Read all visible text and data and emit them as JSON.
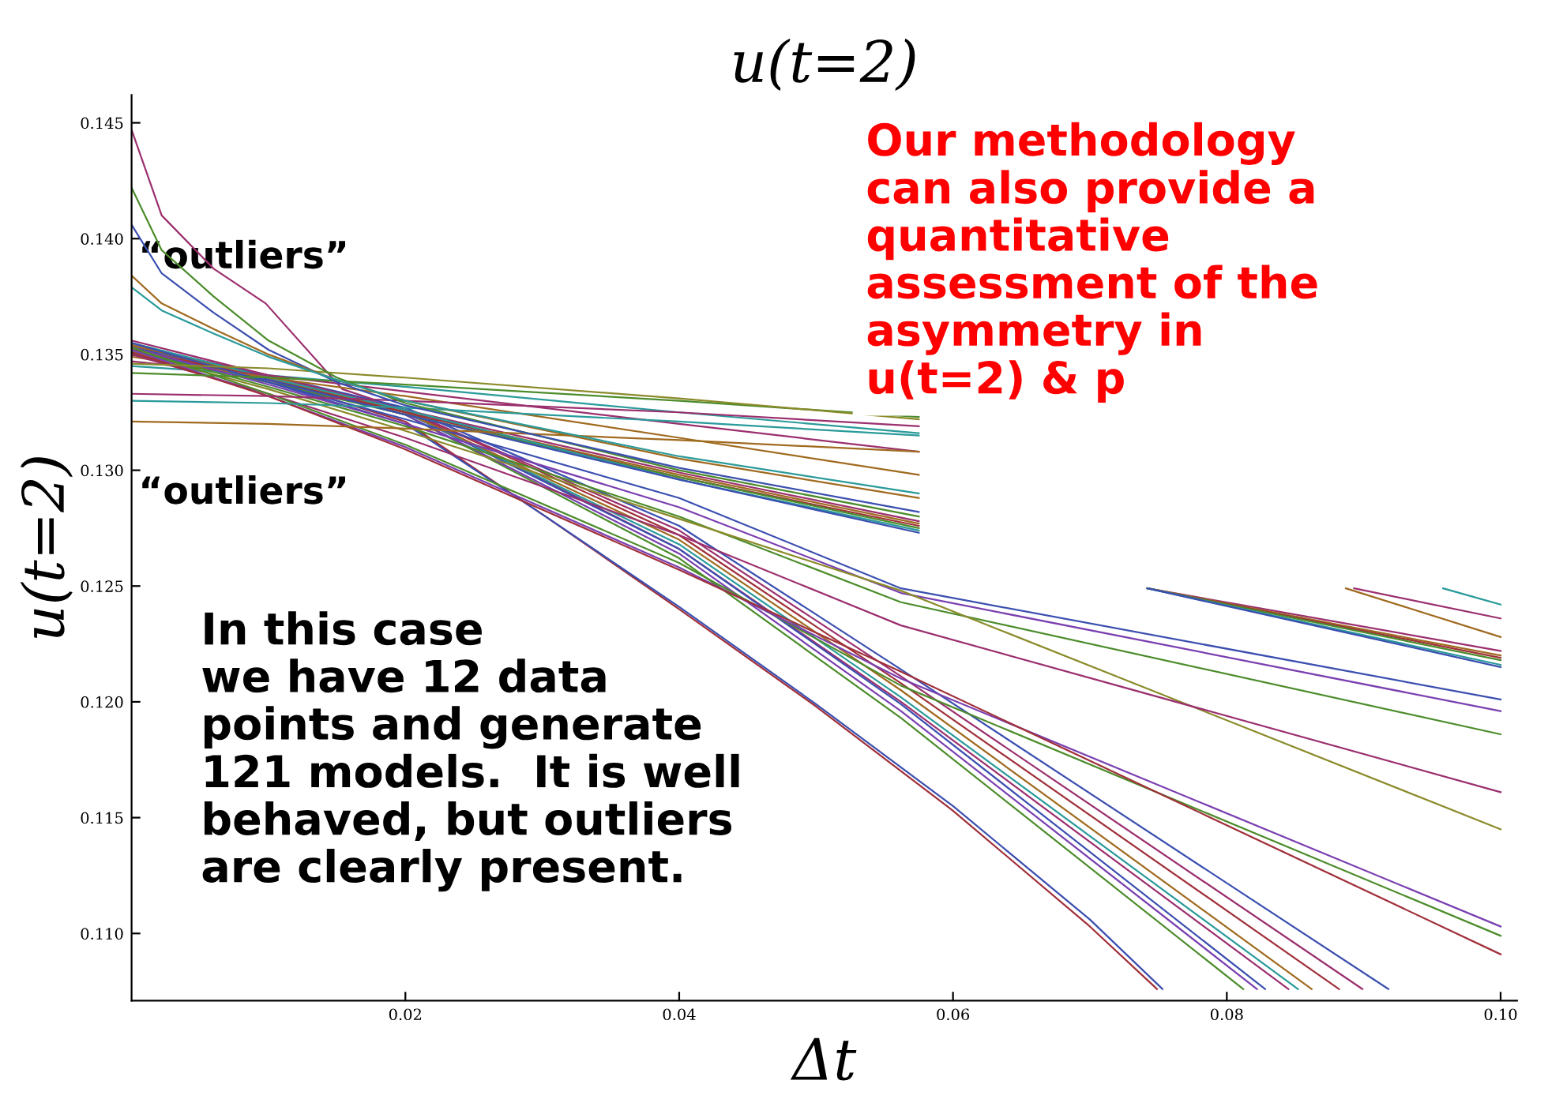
{
  "chart_data": {
    "type": "line",
    "title": "u(t=2)",
    "xlabel": "Δt",
    "ylabel": "u(t=2)",
    "xlim": [
      0,
      0.1012
    ],
    "ylim": [
      0.1071,
      0.1462
    ],
    "xticks": [
      0.02,
      0.04,
      0.06,
      0.08,
      {
        "value": 0.1,
        "label": "0.10"
      }
    ],
    "yticks": [
      {
        "value": 0.11,
        "label": "0.110"
      },
      0.115,
      {
        "value": 0.12,
        "label": "0.120"
      },
      0.125,
      {
        "value": 0.13,
        "label": "0.130"
      },
      0.135,
      {
        "value": 0.14,
        "label": "0.140"
      },
      0.145
    ],
    "grid": false,
    "marker": "none",
    "line_style": "solid",
    "annotations": [
      "“outliers”",
      "“outliers”",
      "Our methodology\ncan also provide a\nquantitative\nassessment of the\nasymmetry in\nu(t=2) & p",
      "In this case\nwe have 12 data\npoints and generate\n121 models.  It is well\nbehaved, but outliers\nare clearly present."
    ],
    "series": [
      {
        "color": "#a0303a",
        "x": [
          0,
          0.01,
          0.02,
          0.03,
          0.04,
          0.05,
          0.06,
          0.07,
          0.0749
        ],
        "values": [
          0.1352,
          0.1339,
          0.1321,
          0.1281,
          0.124,
          0.1198,
          0.1153,
          0.1103,
          0.1076
        ]
      },
      {
        "color": "#3b4fb0",
        "x": [
          0,
          0.01,
          0.02,
          0.03,
          0.04,
          0.05,
          0.06,
          0.07,
          0.0753
        ],
        "values": [
          0.1351,
          0.1338,
          0.132,
          0.1281,
          0.1241,
          0.1199,
          0.1155,
          0.1106,
          0.1076
        ]
      },
      {
        "color": "#9b2f6e",
        "x": [
          0,
          0.0022,
          0.006,
          0.0098,
          0.0154,
          0.02,
          0.04,
          0.0562,
          0.0845
        ],
        "values": [
          0.1447,
          0.141,
          0.1387,
          0.1372,
          0.1335,
          0.1326,
          0.1266,
          0.12,
          0.1076
        ]
      },
      {
        "color": "#4c8c2b",
        "x": [
          0,
          0.01,
          0.02,
          0.04,
          0.0562,
          0.0812
        ],
        "values": [
          0.1353,
          0.134,
          0.1324,
          0.1262,
          0.1193,
          0.1076
        ]
      },
      {
        "color": "#7a3fb0",
        "x": [
          0,
          0.01,
          0.02,
          0.04,
          0.0562,
          0.0822
        ],
        "values": [
          0.1352,
          0.1339,
          0.1324,
          0.1264,
          0.1196,
          0.1076
        ]
      },
      {
        "color": "#3b4fb0",
        "x": [
          0,
          0.01,
          0.02,
          0.04,
          0.0562,
          0.0828
        ],
        "values": [
          0.1354,
          0.134,
          0.1325,
          0.1266,
          0.1199,
          0.1076
        ]
      },
      {
        "color": "#2a9a9a",
        "x": [
          0,
          0.01,
          0.02,
          0.04,
          0.0562,
          0.0852
        ],
        "values": [
          0.1351,
          0.1339,
          0.1325,
          0.1268,
          0.1202,
          0.1076
        ]
      },
      {
        "color": "#a06a1f",
        "x": [
          0,
          0.01,
          0.02,
          0.04,
          0.0562,
          0.0862
        ],
        "values": [
          0.1353,
          0.134,
          0.1325,
          0.127,
          0.1205,
          0.1076
        ]
      },
      {
        "color": "#a0303a",
        "x": [
          0,
          0.01,
          0.02,
          0.04,
          0.0562,
          0.0882
        ],
        "values": [
          0.1352,
          0.134,
          0.1326,
          0.1272,
          0.1208,
          0.1076
        ]
      },
      {
        "color": "#9b2f6e",
        "x": [
          0,
          0.01,
          0.02,
          0.04,
          0.0562,
          0.0899
        ],
        "values": [
          0.1354,
          0.1341,
          0.1326,
          0.1274,
          0.1211,
          0.1076
        ]
      },
      {
        "color": "#3b4fb0",
        "x": [
          0,
          0.01,
          0.02,
          0.04,
          0.0562,
          0.0918
        ],
        "values": [
          0.1353,
          0.1341,
          0.1327,
          0.1276,
          0.1214,
          0.1076
        ]
      },
      {
        "color": "#9b2f6e",
        "x": [
          0,
          0.01,
          0.02,
          0.04,
          0.0575,
          0.065,
          0.0742,
          0.1
        ],
        "values": [
          0.1356,
          0.1341,
          0.1326,
          0.1299,
          0.1278,
          null,
          0.1249,
          0.1222
        ]
      },
      {
        "color": "#a06a1f",
        "x": [
          0,
          0.01,
          0.02,
          0.04,
          0.0575,
          0.065,
          0.0742,
          0.1
        ],
        "values": [
          0.1354,
          0.134,
          0.1325,
          0.1298,
          0.1277,
          null,
          0.1249,
          0.122
        ]
      },
      {
        "color": "#a0303a",
        "x": [
          0,
          0.01,
          0.02,
          0.04,
          0.0575,
          0.065,
          0.0742,
          0.1
        ],
        "values": [
          0.1352,
          0.1339,
          0.1325,
          0.1297,
          0.1276,
          null,
          0.1249,
          0.1219
        ]
      },
      {
        "color": "#4c8c2b",
        "x": [
          0,
          0.01,
          0.02,
          0.04,
          0.0575,
          0.065,
          0.0742,
          0.1
        ],
        "values": [
          0.135,
          0.1338,
          0.1324,
          0.1297,
          0.1275,
          null,
          0.1249,
          0.1218
        ]
      },
      {
        "color": "#2a9a9a",
        "x": [
          0,
          0.01,
          0.02,
          0.04,
          0.0575,
          0.065,
          0.0742,
          0.1
        ],
        "values": [
          0.1355,
          0.134,
          0.1326,
          0.1296,
          0.1274,
          null,
          0.1249,
          0.1216
        ]
      },
      {
        "color": "#3b4fb0",
        "x": [
          0,
          0.01,
          0.02,
          0.04,
          0.0575,
          0.065,
          0.0742,
          0.1
        ],
        "values": [
          0.1351,
          0.1339,
          0.1324,
          0.1296,
          0.1273,
          null,
          0.1249,
          0.1215
        ]
      },
      {
        "color": "#2a9a9a",
        "x": [
          0,
          0.01,
          0.02,
          0.04,
          0.0575,
          0.08,
          0.0958,
          0.1
        ],
        "values": [
          0.1345,
          0.1341,
          0.1336,
          0.1325,
          0.1316,
          null,
          0.1249,
          0.1242
        ]
      },
      {
        "color": "#9b2f6e",
        "x": [
          0,
          0.01,
          0.02,
          0.04,
          0.0575,
          0.075,
          0.0893,
          0.1
        ],
        "values": [
          0.1347,
          0.1341,
          0.1334,
          0.132,
          0.1308,
          null,
          0.1249,
          0.1236
        ]
      },
      {
        "color": "#a06a1f",
        "x": [
          0,
          0.01,
          0.02,
          0.04,
          0.0575,
          0.07,
          0.0887,
          0.1
        ],
        "values": [
          0.1349,
          0.134,
          0.1332,
          0.1314,
          0.1298,
          null,
          0.1249,
          0.1228
        ]
      },
      {
        "color": "#3b4fb0",
        "x": [
          0,
          0.01,
          0.02,
          0.04,
          0.0562,
          0.1
        ],
        "values": [
          0.1355,
          0.1338,
          0.1322,
          0.1288,
          0.1249,
          0.1201
        ]
      },
      {
        "color": "#7a3fb0",
        "x": [
          0,
          0.01,
          0.02,
          0.04,
          0.0562,
          0.1
        ],
        "values": [
          0.1353,
          0.1337,
          0.132,
          0.1284,
          0.1247,
          0.1196
        ]
      },
      {
        "color": "#4c8c2b",
        "x": [
          0,
          0.01,
          0.02,
          0.04,
          0.0562,
          0.1
        ],
        "values": [
          0.1352,
          0.1336,
          0.1319,
          0.128,
          0.1243,
          0.1186
        ]
      },
      {
        "color": "#8a8a2a",
        "x": [
          0,
          0.01,
          0.02,
          0.04,
          0.0562,
          0.1
        ],
        "values": [
          0.1351,
          0.1335,
          0.1317,
          0.1279,
          0.1248,
          0.1145
        ]
      },
      {
        "color": "#9b2f6e",
        "x": [
          0,
          0.01,
          0.02,
          0.04,
          0.0562,
          0.1
        ],
        "values": [
          0.135,
          0.1333,
          0.1314,
          0.1272,
          0.1233,
          0.1161
        ]
      },
      {
        "color": "#4c8c2b",
        "x": [
          0,
          0.01,
          0.02,
          0.04,
          0.0562,
          0.1
        ],
        "values": [
          0.1353,
          0.1333,
          0.1311,
          0.126,
          0.1207,
          0.1099
        ]
      },
      {
        "color": "#7a3fb0",
        "x": [
          0,
          0.01,
          0.02,
          0.04,
          0.0562,
          0.1
        ],
        "values": [
          0.1352,
          0.1332,
          0.131,
          0.1258,
          0.121,
          0.1103
        ]
      },
      {
        "color": "#a0303a",
        "x": [
          0,
          0.01,
          0.02,
          0.04,
          0.0562,
          0.1
        ],
        "values": [
          0.1351,
          0.1332,
          0.1309,
          0.1257,
          0.1213,
          0.1091
        ]
      },
      {
        "color": "#a06a1f",
        "x": [
          0,
          0.01,
          0.02,
          0.04,
          0.0575
        ],
        "values": [
          0.1321,
          0.132,
          0.1318,
          0.1313,
          0.1308
        ]
      },
      {
        "color": "#2a9a9a",
        "x": [
          0,
          0.01,
          0.02,
          0.04,
          0.0575
        ],
        "values": [
          0.133,
          0.1329,
          0.1327,
          0.1321,
          0.1315
        ]
      },
      {
        "color": "#9b2f6e",
        "x": [
          0,
          0.01,
          0.02,
          0.04,
          0.0575
        ],
        "values": [
          0.1333,
          0.1332,
          0.133,
          0.1325,
          0.1319
        ]
      },
      {
        "color": "#4c8c2b",
        "x": [
          0,
          0.01,
          0.02,
          0.04,
          0.0575
        ],
        "values": [
          0.1342,
          0.134,
          0.1337,
          0.133,
          0.1323
        ]
      },
      {
        "color": "#8a8a2a",
        "x": [
          0,
          0.01,
          0.02,
          0.04,
          0.0575
        ],
        "values": [
          0.1346,
          0.1344,
          0.134,
          0.1331,
          0.1322
        ]
      },
      {
        "color": "#4c8c2b",
        "x": [
          0,
          0.0022,
          0.006,
          0.01,
          0.015,
          0.02,
          0.04,
          0.0575
        ],
        "values": [
          0.1422,
          0.1395,
          0.1375,
          0.1356,
          0.134,
          0.1329,
          0.13,
          0.128
        ]
      },
      {
        "color": "#3b4fb0",
        "x": [
          0,
          0.0022,
          0.006,
          0.01,
          0.015,
          0.02,
          0.04,
          0.0575
        ],
        "values": [
          0.1406,
          0.1385,
          0.1368,
          0.1352,
          0.1338,
          0.1328,
          0.1301,
          0.1282
        ]
      },
      {
        "color": "#a06a1f",
        "x": [
          0,
          0.0022,
          0.006,
          0.01,
          0.015,
          0.02,
          0.04,
          0.0575
        ],
        "values": [
          0.1384,
          0.1372,
          0.1361,
          0.135,
          0.1339,
          0.133,
          0.1305,
          0.1288
        ]
      },
      {
        "color": "#2a9a9a",
        "x": [
          0,
          0.0022,
          0.006,
          0.01,
          0.015,
          0.02,
          0.04,
          0.0575
        ],
        "values": [
          0.1379,
          0.1369,
          0.1359,
          0.1349,
          0.1339,
          0.133,
          0.1306,
          0.129
        ]
      }
    ]
  }
}
